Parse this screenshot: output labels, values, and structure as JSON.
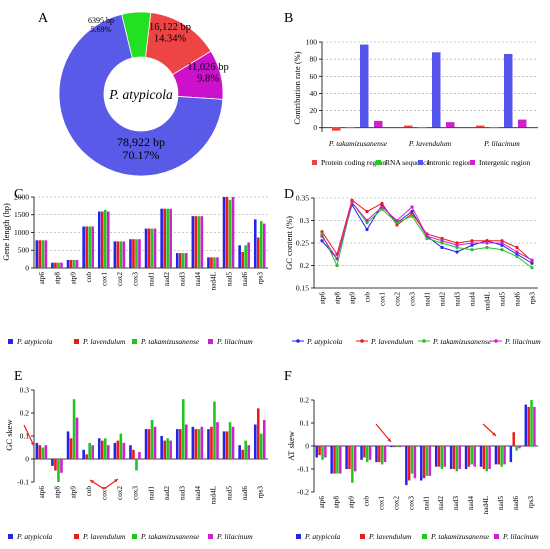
{
  "panel_letters": [
    "A",
    "B",
    "C",
    "D",
    "E",
    "F"
  ],
  "colors": {
    "atypicola": "#2424e8",
    "lavendulum": "#e81c1c",
    "takamizusanense": "#22c422",
    "lilacinum": "#cc22cc",
    "donut_intronic": "#5a5ae8",
    "donut_rna": "#22e022",
    "donut_protein": "#ee4444",
    "donut_intergenic": "#cc11cc",
    "bar_protein": "#ee4444",
    "bar_rna": "#22cc22",
    "bar_intronic": "#5555ee",
    "bar_intergenic": "#cc22cc",
    "arrow": "#e82020"
  },
  "chart_data": [
    {
      "panel": "A",
      "type": "pie",
      "center_label": "P. atypicola",
      "slices": [
        {
          "name": "Protein coding region",
          "bp_label": "16,122 bp",
          "pct_label": "14.34%",
          "value": 14.34,
          "color_key": "donut_protein"
        },
        {
          "name": "Intergenic region",
          "bp_label": "11,026 bp",
          "pct_label": "9.8%",
          "value": 9.8,
          "color_key": "donut_intergenic"
        },
        {
          "name": "Intronic region",
          "bp_label": "78,922 bp",
          "pct_label": "70.17%",
          "value": 70.17,
          "color_key": "donut_intronic"
        },
        {
          "name": "RNA sequence",
          "bp_label": "6395 bp",
          "pct_label": "5.69%",
          "value": 5.69,
          "color_key": "donut_rna"
        }
      ]
    },
    {
      "panel": "B",
      "type": "bar",
      "ylabel": "Contribution rate (%)",
      "ylim": [
        -5,
        100
      ],
      "yticks": [
        0,
        20,
        40,
        60,
        80,
        100
      ],
      "categories": [
        "P. takamizusanense",
        "P. lavendulum",
        "P. lilacinum"
      ],
      "series": [
        {
          "name": "Protein coding region",
          "color_key": "bar_protein",
          "values": [
            -3.5,
            2.5,
            2.5
          ]
        },
        {
          "name": "RNA sequence",
          "color_key": "bar_rna",
          "values": [
            0.5,
            0.5,
            0.5
          ]
        },
        {
          "name": "Intronic region",
          "color_key": "bar_intronic",
          "values": [
            97,
            88,
            86
          ]
        },
        {
          "name": "Intergenic region",
          "color_key": "bar_intergenic",
          "values": [
            8,
            6.5,
            9.5
          ]
        }
      ]
    },
    {
      "panel": "C",
      "type": "bar",
      "ylabel": "Gene length (bp)",
      "ylim": [
        0,
        2000
      ],
      "yticks": [
        0,
        500,
        1000,
        1500,
        2000
      ],
      "categories": [
        "atp6",
        "atp8",
        "atp9",
        "cob",
        "cox1",
        "cox2",
        "cox3",
        "nad1",
        "nad2",
        "nad3",
        "nad4",
        "nad4L",
        "nad5",
        "nad6",
        "rps3"
      ],
      "series": [
        {
          "name": "P. atypicola",
          "color_key": "atypicola",
          "values": [
            780,
            150,
            225,
            1170,
            1590,
            750,
            810,
            1110,
            1670,
            420,
            1460,
            300,
            2000,
            640,
            1370
          ]
        },
        {
          "name": "P. lavendulum",
          "color_key": "lavendulum",
          "values": [
            780,
            150,
            225,
            1170,
            1590,
            750,
            810,
            1110,
            1670,
            420,
            1460,
            300,
            2000,
            450,
            860
          ]
        },
        {
          "name": "P. takamizusanense",
          "color_key": "takamizusanense",
          "values": [
            780,
            150,
            225,
            1170,
            1640,
            750,
            810,
            1110,
            1670,
            420,
            1460,
            300,
            1920,
            640,
            1320
          ]
        },
        {
          "name": "P. lilacinum",
          "color_key": "lilacinum",
          "values": [
            780,
            150,
            225,
            1170,
            1590,
            750,
            810,
            1110,
            1670,
            420,
            1460,
            300,
            2000,
            720,
            1250
          ]
        }
      ]
    },
    {
      "panel": "D",
      "type": "line",
      "ylabel": "GC content (%)",
      "ylim": [
        0.15,
        0.35
      ],
      "yticks": [
        0.15,
        0.2,
        0.25,
        0.3,
        0.35
      ],
      "categories": [
        "atp6",
        "atp8",
        "atp9",
        "cob",
        "cox1",
        "cox2",
        "cox3",
        "nad1",
        "nad2",
        "nad3",
        "nad4",
        "nad4L",
        "nad5",
        "nad6",
        "rps3"
      ],
      "series": [
        {
          "name": "P. atypicola",
          "color_key": "atypicola",
          "values": [
            0.255,
            0.215,
            0.335,
            0.28,
            0.335,
            0.295,
            0.32,
            0.265,
            0.24,
            0.23,
            0.245,
            0.255,
            0.245,
            0.225,
            0.205
          ]
        },
        {
          "name": "P. lavendulum",
          "color_key": "lavendulum",
          "values": [
            0.275,
            0.225,
            0.345,
            0.32,
            0.338,
            0.29,
            0.315,
            0.27,
            0.26,
            0.25,
            0.255,
            0.255,
            0.255,
            0.24,
            0.21
          ]
        },
        {
          "name": "P. takamizusanense",
          "color_key": "takamizusanense",
          "values": [
            0.27,
            0.2,
            0.34,
            0.295,
            0.325,
            0.295,
            0.31,
            0.26,
            0.25,
            0.24,
            0.235,
            0.24,
            0.235,
            0.22,
            0.195
          ]
        },
        {
          "name": "P. lilacinum",
          "color_key": "lilacinum",
          "values": [
            0.265,
            0.215,
            0.34,
            0.3,
            0.33,
            0.3,
            0.33,
            0.265,
            0.255,
            0.245,
            0.25,
            0.25,
            0.25,
            0.23,
            0.212
          ]
        }
      ]
    },
    {
      "panel": "E",
      "type": "bar",
      "ylabel": "GC skew",
      "ylim": [
        -0.1,
        0.3
      ],
      "yticks": [
        -0.1,
        0,
        0.1,
        0.2,
        0.3
      ],
      "categories": [
        "atp6",
        "atp8",
        "atp9",
        "cob",
        "cox1",
        "cox2",
        "cox3",
        "nad1",
        "nad2",
        "nad3",
        "nad4",
        "nad4L",
        "nad5",
        "nad6",
        "rps3"
      ],
      "series": [
        {
          "name": "P. atypicola",
          "color_key": "atypicola",
          "values": [
            0.07,
            -0.03,
            0.12,
            0.04,
            0.09,
            0.07,
            0.06,
            0.13,
            0.1,
            0.13,
            0.14,
            0.13,
            0.12,
            0.06,
            0.15
          ]
        },
        {
          "name": "P. lavendulum",
          "color_key": "lavendulum",
          "values": [
            0.06,
            -0.05,
            0.09,
            0.02,
            0.08,
            0.08,
            0.04,
            0.13,
            0.08,
            0.13,
            0.13,
            0.14,
            0.12,
            0.04,
            0.22
          ]
        },
        {
          "name": "P. takamizusanense",
          "color_key": "takamizusanense",
          "values": [
            0.05,
            -0.1,
            0.26,
            0.07,
            0.09,
            0.11,
            -0.05,
            0.17,
            0.09,
            0.26,
            0.13,
            0.25,
            0.16,
            0.08,
            0.11
          ]
        },
        {
          "name": "P. lilacinum",
          "color_key": "lilacinum",
          "values": [
            0.06,
            -0.06,
            0.18,
            0.06,
            0.06,
            0.07,
            0.03,
            0.14,
            0.08,
            0.15,
            0.14,
            0.16,
            0.14,
            0.06,
            0.17
          ]
        }
      ]
    },
    {
      "panel": "F",
      "type": "bar",
      "ylabel": "AT skew",
      "ylim": [
        -0.2,
        0.2
      ],
      "yticks": [
        -0.2,
        -0.1,
        0,
        0.1,
        0.2
      ],
      "categories": [
        "atp6",
        "atp8",
        "atp9",
        "cob",
        "cox1",
        "cox2",
        "cox3",
        "nad1",
        "nad2",
        "nad3",
        "nad4",
        "nad4L",
        "nad5",
        "nad6",
        "rps3"
      ],
      "series": [
        {
          "name": "P. atypicola",
          "color_key": "atypicola",
          "values": [
            -0.05,
            -0.12,
            -0.1,
            -0.06,
            -0.07,
            -0.005,
            -0.17,
            -0.15,
            -0.09,
            -0.1,
            -0.1,
            -0.09,
            -0.08,
            -0.07,
            0.18
          ]
        },
        {
          "name": "P. lavendulum",
          "color_key": "lavendulum",
          "values": [
            -0.04,
            -0.12,
            -0.1,
            -0.05,
            -0.07,
            -0.005,
            -0.15,
            -0.14,
            -0.09,
            -0.1,
            -0.09,
            -0.1,
            -0.08,
            0.06,
            0.17
          ]
        },
        {
          "name": "P. takamizusanense",
          "color_key": "takamizusanense",
          "values": [
            -0.06,
            -0.12,
            -0.16,
            -0.07,
            -0.08,
            -0.005,
            -0.12,
            -0.13,
            -0.1,
            -0.11,
            -0.08,
            -0.11,
            -0.09,
            -0.02,
            0.2
          ]
        },
        {
          "name": "P. lilacinum",
          "color_key": "lilacinum",
          "values": [
            -0.05,
            -0.12,
            -0.11,
            -0.06,
            -0.07,
            -0.005,
            -0.14,
            -0.13,
            -0.09,
            -0.1,
            -0.09,
            -0.1,
            -0.08,
            -0.01,
            0.17
          ]
        }
      ]
    }
  ]
}
